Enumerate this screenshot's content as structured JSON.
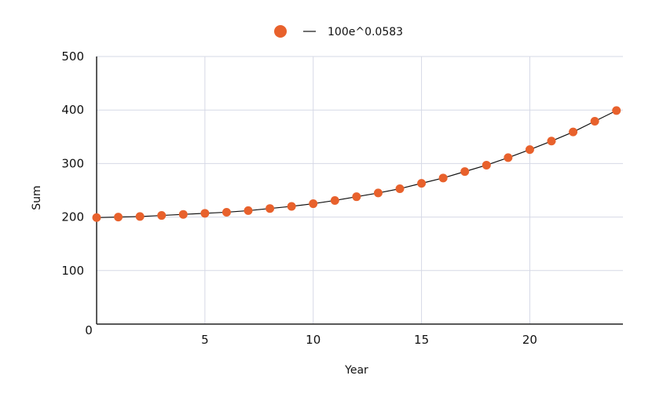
{
  "chart_data": {
    "type": "scatter",
    "title": "",
    "xlabel": "Year",
    "ylabel": "Sum",
    "xlim": [
      0,
      24.3
    ],
    "ylim": [
      0,
      500
    ],
    "x_ticks": [
      5,
      10,
      15,
      20
    ],
    "y_ticks": [
      100,
      200,
      300,
      400,
      500
    ],
    "origin_label": "0",
    "grid": true,
    "legend_position": "top-center",
    "series": [
      {
        "name": "",
        "kind": "points",
        "color": "#e8612c",
        "x": [
          0,
          1,
          2,
          3,
          4,
          5,
          6,
          7,
          8,
          9,
          10,
          11,
          12,
          13,
          14,
          15,
          16,
          17,
          18,
          19,
          20,
          21,
          22,
          23,
          24
        ],
        "y": [
          199,
          200,
          201,
          203,
          205,
          207,
          209,
          212,
          216,
          220,
          225,
          231,
          238,
          245,
          253,
          263,
          273,
          285,
          297,
          311,
          326,
          342,
          359,
          379,
          399
        ]
      },
      {
        "name": "100e^0.0583",
        "kind": "line",
        "color": "#111111",
        "x": [
          0,
          1,
          2,
          3,
          4,
          5,
          6,
          7,
          8,
          9,
          10,
          11,
          12,
          13,
          14,
          15,
          16,
          17,
          18,
          19,
          20,
          21,
          22,
          23,
          24
        ],
        "y": [
          199,
          200,
          201,
          203,
          205,
          207,
          209,
          212,
          216,
          220,
          225,
          231,
          238,
          245,
          253,
          263,
          273,
          285,
          297,
          311,
          326,
          342,
          359,
          379,
          399
        ]
      }
    ],
    "colors": {
      "grid": "#d6d9e6",
      "axis": "#222222",
      "point": "#e8612c",
      "line": "#111111"
    }
  }
}
